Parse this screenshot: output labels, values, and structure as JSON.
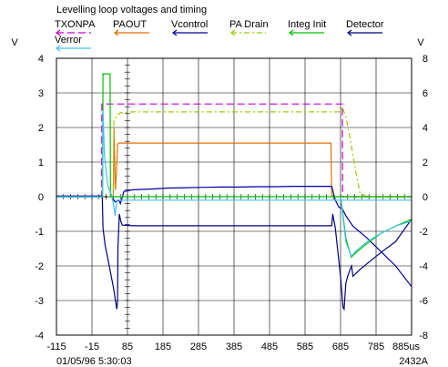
{
  "chart_data": {
    "type": "line",
    "title": "Levelling loop voltages and timing",
    "footer_left": "01/05/96 5:30:03",
    "footer_right": "2432A",
    "xlim": [
      -115,
      885
    ],
    "x_tick_labels": [
      "-115",
      "-15",
      "85",
      "185",
      "285",
      "385",
      "485",
      "585",
      "685",
      "785",
      "885us"
    ],
    "ylim_left": [
      -4,
      4
    ],
    "ylim_right": [
      -8,
      8
    ],
    "y_left_unit": "V",
    "y_right_unit": "V",
    "y_left_ticks": [
      "4",
      "3",
      "2",
      "1",
      "0",
      "-1",
      "-2",
      "-3",
      "-4"
    ],
    "y_right_ticks": [
      "8",
      "6",
      "4",
      "2",
      "0",
      "-2",
      "-4",
      "-6",
      "-8"
    ],
    "grid": true,
    "legend_position": "top",
    "legend": [
      {
        "name": "TXONPA",
        "color": "#d000d0",
        "dash": "8,4"
      },
      {
        "name": "PAOUT",
        "color": "#e07000",
        "dash": ""
      },
      {
        "name": "Vcontrol",
        "color": "#0000a0",
        "dash": ""
      },
      {
        "name": "PA Drain",
        "color": "#9acd00",
        "dash": "6,3,2,3"
      },
      {
        "name": "Integ Init",
        "color": "#00c000",
        "dash": ""
      },
      {
        "name": "Detector",
        "color": "#000080",
        "dash": ""
      },
      {
        "name": "Verror",
        "color": "#40c0f0",
        "dash": ""
      }
    ],
    "series": [
      {
        "name": "TXONPA",
        "axis": "left",
        "color": "#d000d0",
        "dash": "8,4",
        "x": [
          -115,
          12,
          13,
          690,
          691,
          885
        ],
        "y": [
          0,
          0,
          2.68,
          2.68,
          0,
          0
        ]
      },
      {
        "name": "PAOUT",
        "axis": "left",
        "color": "#e07000",
        "dash": "",
        "x": [
          -115,
          45,
          47,
          49,
          51,
          54,
          57,
          60,
          63,
          80,
          658,
          660,
          665,
          885
        ],
        "y": [
          0,
          0,
          2.0,
          1.0,
          0.2,
          0.7,
          1.5,
          1.55,
          1.55,
          1.55,
          1.55,
          0.05,
          0,
          0
        ]
      },
      {
        "name": "Vcontrol",
        "axis": "left",
        "color": "#0000a0",
        "dash": "",
        "x": [
          -115,
          40,
          50,
          60,
          65,
          75,
          100,
          150,
          200,
          250,
          300,
          350,
          400,
          450,
          500,
          550,
          600,
          650,
          660,
          670,
          680,
          690,
          700,
          720,
          760,
          800,
          840,
          885
        ],
        "y": [
          0,
          0,
          -0.15,
          -0.1,
          -0.2,
          0.15,
          0.2,
          0.22,
          0.25,
          0.26,
          0.27,
          0.28,
          0.28,
          0.29,
          0.29,
          0.3,
          0.3,
          0.3,
          0.3,
          -0.1,
          -0.3,
          -0.35,
          -0.55,
          -0.85,
          -1.2,
          -1.6,
          -2.0,
          -2.6
        ]
      },
      {
        "name": "PA Drain",
        "axis": "left",
        "color": "#9acd00",
        "dash": "6,3,2,3",
        "x": [
          -115,
          45,
          47,
          55,
          65,
          100,
          200,
          300,
          400,
          500,
          600,
          680,
          690,
          700,
          710,
          720,
          730,
          740,
          760,
          885
        ],
        "y": [
          0,
          0,
          2.2,
          2.35,
          2.42,
          2.45,
          2.45,
          2.45,
          2.45,
          2.45,
          2.45,
          2.45,
          2.6,
          2.3,
          1.8,
          1.2,
          0.6,
          0.1,
          0,
          0
        ]
      },
      {
        "name": "Integ Init",
        "axis": "left",
        "color": "#00c000",
        "dash": "",
        "x": [
          -115,
          15,
          16,
          36,
          37,
          885
        ],
        "y": [
          0,
          0,
          3.55,
          3.55,
          0,
          0
        ]
      },
      {
        "name": "Detector",
        "axis": "left",
        "color": "#000080",
        "dash": "",
        "x": [
          -115,
          12,
          14,
          16,
          22,
          30,
          45,
          55,
          57,
          58,
          62,
          66,
          70,
          100,
          200,
          300,
          400,
          500,
          600,
          660,
          663,
          670,
          685,
          692,
          695,
          700,
          705,
          712,
          716,
          720,
          740,
          770,
          800,
          840,
          885
        ],
        "y": [
          0.02,
          0.02,
          0.05,
          -0.9,
          -1.4,
          -1.8,
          -2.6,
          -3.25,
          -3.0,
          -1.5,
          -0.5,
          -0.7,
          -0.82,
          -0.84,
          -0.84,
          -0.84,
          -0.84,
          -0.84,
          -0.84,
          -0.84,
          -0.5,
          -0.9,
          -2.3,
          -3.2,
          -3.25,
          -2.5,
          -2.3,
          -2.1,
          -2.0,
          -2.3,
          -2.1,
          -1.85,
          -1.6,
          -1.3,
          -0.65
        ]
      },
      {
        "name": "Verror",
        "axis": "left",
        "color": "#40c0f0",
        "dash": "",
        "x": [
          -115,
          14,
          16,
          20,
          30,
          40,
          47,
          50,
          55,
          885
        ],
        "y": [
          0,
          0,
          2.5,
          1.2,
          0.3,
          0.05,
          -0.3,
          -0.55,
          -0.1,
          -0.1
        ]
      },
      {
        "name": "Integ Init tail",
        "axis": "left",
        "color": "#00c000",
        "dash": "",
        "x": [
          685,
          688,
          700,
          715,
          730,
          760,
          800,
          840,
          885
        ],
        "y": [
          0,
          -0.2,
          -1.2,
          -1.75,
          -1.6,
          -1.35,
          -1.05,
          -0.85,
          -0.65
        ]
      },
      {
        "name": "Verror tail",
        "axis": "left",
        "color": "#40c0f0",
        "dash": "",
        "x": [
          685,
          688,
          700,
          715,
          730,
          760,
          800,
          840,
          885
        ],
        "y": [
          0,
          -0.25,
          -1.3,
          -1.72,
          -1.55,
          -1.3,
          -1.05,
          -0.85,
          -0.7
        ]
      }
    ]
  }
}
